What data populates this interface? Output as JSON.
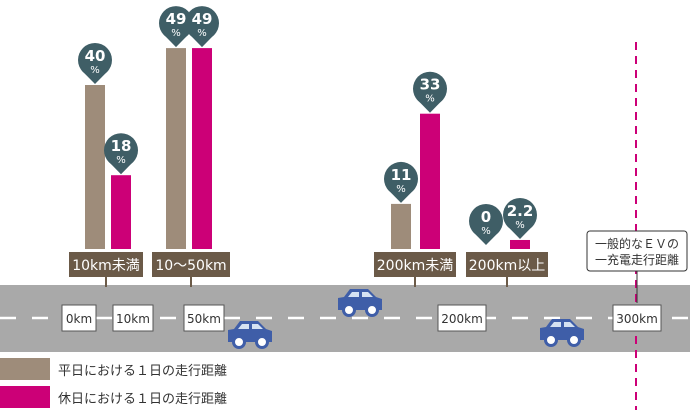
{
  "chart_data": {
    "type": "bar",
    "categories": [
      "10km未満",
      "10〜50km",
      "200km未満",
      "200km以上"
    ],
    "series": [
      {
        "name": "平日における１日の走行距離",
        "values": [
          40,
          49,
          11,
          0
        ]
      },
      {
        "name": "休日における１日の走行距離",
        "values": [
          18,
          49,
          33,
          2.2
        ]
      }
    ],
    "value_labels": {
      "weekday": [
        "40",
        "49",
        "11",
        "0"
      ],
      "holiday": [
        "18",
        "49",
        "33",
        "2.2"
      ]
    },
    "percent_sign": "%",
    "road_markers": [
      "0km",
      "10km",
      "50km",
      "200km",
      "300km"
    ],
    "ev_note": [
      "一般的なＥＶの",
      "一充電走行距離"
    ],
    "colors": {
      "weekday": "#9e8c7a",
      "holiday": "#cc0077",
      "label_bg": "#6b5a48",
      "pin": "#3f5e66",
      "road": "#a9a9a9",
      "car": "#3f5ea8",
      "dashed_line": "#cc0077"
    }
  }
}
